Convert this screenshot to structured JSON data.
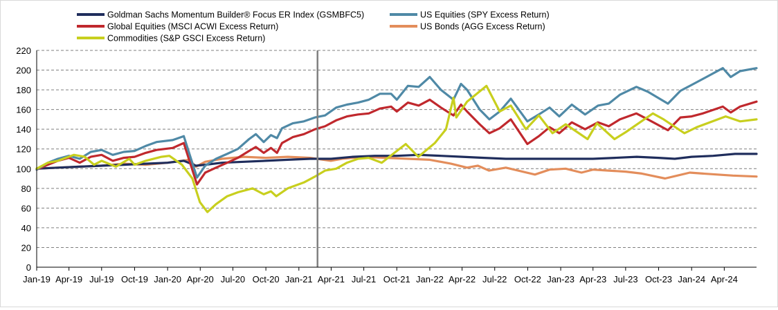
{
  "chart_data": {
    "type": "line",
    "title": "",
    "xlabel": "",
    "ylabel": "",
    "ylim": [
      0,
      220
    ],
    "y_ticks": [
      0,
      20,
      40,
      60,
      80,
      100,
      120,
      140,
      160,
      180,
      200,
      220
    ],
    "x_range": [
      "2019-01-01",
      "2024-06-30"
    ],
    "x_tick_dates": [
      "2019-01-01",
      "2019-04-01",
      "2019-07-01",
      "2019-10-01",
      "2020-01-01",
      "2020-04-01",
      "2020-07-01",
      "2020-10-01",
      "2021-01-01",
      "2021-04-01",
      "2021-07-01",
      "2021-10-01",
      "2022-01-01",
      "2022-04-01",
      "2022-07-01",
      "2022-10-01",
      "2023-01-01",
      "2023-04-01",
      "2023-07-01",
      "2023-10-01",
      "2024-01-01",
      "2024-04-01"
    ],
    "x_tick_labels": [
      "Jan-19",
      "Apr-19",
      "Jul-19",
      "Oct-19",
      "Jan-20",
      "Apr-20",
      "Jul-20",
      "Oct-20",
      "Jan-21",
      "Apr-21",
      "Jul-21",
      "Oct-21",
      "Jan-22",
      "Apr-22",
      "Jul-22",
      "Oct-22",
      "Jan-23",
      "Apr-23",
      "Jul-23",
      "Oct-23",
      "Jan-24",
      "Apr-24"
    ],
    "y_grid": true,
    "legend_position": "top",
    "reference_line": {
      "x": "2021-02-22",
      "color": "#808080"
    },
    "series": [
      {
        "name": "Goldman Sachs Momentum Builder® Focus ER Index (GSMBFC5)",
        "color": "#1f2d5c",
        "points": [
          [
            "2019-01-01",
            100
          ],
          [
            "2019-03-01",
            101
          ],
          [
            "2019-05-01",
            102
          ],
          [
            "2019-07-01",
            103
          ],
          [
            "2019-09-01",
            104
          ],
          [
            "2019-11-01",
            105
          ],
          [
            "2020-01-01",
            106
          ],
          [
            "2020-02-15",
            108
          ],
          [
            "2020-03-20",
            103
          ],
          [
            "2020-04-15",
            104
          ],
          [
            "2020-06-01",
            106
          ],
          [
            "2020-08-01",
            107
          ],
          [
            "2020-10-01",
            108
          ],
          [
            "2020-12-01",
            109
          ],
          [
            "2021-02-01",
            110
          ],
          [
            "2021-04-01",
            110
          ],
          [
            "2021-06-01",
            112
          ],
          [
            "2021-08-01",
            113
          ],
          [
            "2021-10-01",
            113
          ],
          [
            "2021-12-01",
            114
          ],
          [
            "2022-02-01",
            113
          ],
          [
            "2022-04-01",
            112
          ],
          [
            "2022-06-01",
            111
          ],
          [
            "2022-08-01",
            110
          ],
          [
            "2022-10-01",
            110
          ],
          [
            "2022-12-01",
            110
          ],
          [
            "2023-02-01",
            110
          ],
          [
            "2023-04-01",
            110
          ],
          [
            "2023-06-01",
            111
          ],
          [
            "2023-08-01",
            112
          ],
          [
            "2023-10-01",
            111
          ],
          [
            "2023-11-15",
            110
          ],
          [
            "2024-01-01",
            112
          ],
          [
            "2024-03-01",
            113
          ],
          [
            "2024-05-01",
            115
          ],
          [
            "2024-06-30",
            115
          ]
        ]
      },
      {
        "name": "US Equities (SPY Excess Return)",
        "color": "#4f89a6",
        "points": [
          [
            "2019-01-01",
            99
          ],
          [
            "2019-02-01",
            106
          ],
          [
            "2019-03-01",
            110
          ],
          [
            "2019-04-01",
            113
          ],
          [
            "2019-05-01",
            110
          ],
          [
            "2019-06-01",
            117
          ],
          [
            "2019-07-01",
            119
          ],
          [
            "2019-08-01",
            114
          ],
          [
            "2019-09-01",
            117
          ],
          [
            "2019-10-01",
            118
          ],
          [
            "2019-11-01",
            123
          ],
          [
            "2019-12-01",
            127
          ],
          [
            "2020-01-15",
            129
          ],
          [
            "2020-02-15",
            133
          ],
          [
            "2020-03-23",
            91
          ],
          [
            "2020-04-15",
            103
          ],
          [
            "2020-05-15",
            110
          ],
          [
            "2020-06-15",
            115
          ],
          [
            "2020-07-15",
            120
          ],
          [
            "2020-08-15",
            130
          ],
          [
            "2020-09-03",
            135
          ],
          [
            "2020-09-25",
            127
          ],
          [
            "2020-10-15",
            134
          ],
          [
            "2020-11-01",
            131
          ],
          [
            "2020-11-15",
            141
          ],
          [
            "2020-12-15",
            146
          ],
          [
            "2021-01-15",
            148
          ],
          [
            "2021-02-15",
            152
          ],
          [
            "2021-03-15",
            154
          ],
          [
            "2021-04-15",
            162
          ],
          [
            "2021-05-15",
            165
          ],
          [
            "2021-06-15",
            167
          ],
          [
            "2021-07-15",
            170
          ],
          [
            "2021-08-15",
            176
          ],
          [
            "2021-09-15",
            176
          ],
          [
            "2021-10-01",
            170
          ],
          [
            "2021-11-01",
            184
          ],
          [
            "2021-12-01",
            183
          ],
          [
            "2022-01-01",
            193
          ],
          [
            "2022-02-01",
            180
          ],
          [
            "2022-03-08",
            170
          ],
          [
            "2022-03-29",
            186
          ],
          [
            "2022-04-15",
            180
          ],
          [
            "2022-05-20",
            160
          ],
          [
            "2022-06-16",
            150
          ],
          [
            "2022-07-15",
            158
          ],
          [
            "2022-08-15",
            171
          ],
          [
            "2022-09-30",
            148
          ],
          [
            "2022-11-01",
            155
          ],
          [
            "2022-12-01",
            162
          ],
          [
            "2022-12-28",
            153
          ],
          [
            "2023-02-01",
            165
          ],
          [
            "2023-03-10",
            155
          ],
          [
            "2023-04-15",
            164
          ],
          [
            "2023-05-15",
            166
          ],
          [
            "2023-06-15",
            175
          ],
          [
            "2023-07-31",
            183
          ],
          [
            "2023-09-01",
            178
          ],
          [
            "2023-10-27",
            166
          ],
          [
            "2023-12-01",
            179
          ],
          [
            "2024-01-01",
            185
          ],
          [
            "2024-02-01",
            191
          ],
          [
            "2024-03-28",
            202
          ],
          [
            "2024-04-19",
            193
          ],
          [
            "2024-05-15",
            199
          ],
          [
            "2024-06-30",
            202
          ]
        ]
      },
      {
        "name": "Global Equities (MSCI ACWI Excess Return)",
        "color": "#c0282d",
        "points": [
          [
            "2019-01-01",
            99
          ],
          [
            "2019-02-01",
            104
          ],
          [
            "2019-03-01",
            108
          ],
          [
            "2019-04-01",
            111
          ],
          [
            "2019-05-01",
            106
          ],
          [
            "2019-06-01",
            112
          ],
          [
            "2019-07-01",
            114
          ],
          [
            "2019-08-01",
            108
          ],
          [
            "2019-09-01",
            111
          ],
          [
            "2019-10-01",
            112
          ],
          [
            "2019-11-01",
            116
          ],
          [
            "2019-12-01",
            119
          ],
          [
            "2020-01-15",
            121
          ],
          [
            "2020-02-15",
            126
          ],
          [
            "2020-03-23",
            84
          ],
          [
            "2020-04-15",
            96
          ],
          [
            "2020-05-15",
            101
          ],
          [
            "2020-06-15",
            106
          ],
          [
            "2020-07-15",
            111
          ],
          [
            "2020-08-15",
            118
          ],
          [
            "2020-09-03",
            122
          ],
          [
            "2020-09-25",
            116
          ],
          [
            "2020-10-15",
            121
          ],
          [
            "2020-11-01",
            116
          ],
          [
            "2020-11-15",
            126
          ],
          [
            "2020-12-15",
            132
          ],
          [
            "2021-01-15",
            135
          ],
          [
            "2021-02-15",
            140
          ],
          [
            "2021-03-15",
            143
          ],
          [
            "2021-04-15",
            149
          ],
          [
            "2021-05-15",
            153
          ],
          [
            "2021-06-15",
            155
          ],
          [
            "2021-07-15",
            156
          ],
          [
            "2021-08-15",
            161
          ],
          [
            "2021-09-15",
            163
          ],
          [
            "2021-10-01",
            158
          ],
          [
            "2021-11-01",
            167
          ],
          [
            "2021-12-01",
            164
          ],
          [
            "2022-01-01",
            170
          ],
          [
            "2022-02-01",
            162
          ],
          [
            "2022-03-08",
            154
          ],
          [
            "2022-03-29",
            165
          ],
          [
            "2022-04-15",
            158
          ],
          [
            "2022-05-20",
            145
          ],
          [
            "2022-06-16",
            136
          ],
          [
            "2022-07-15",
            141
          ],
          [
            "2022-08-15",
            150
          ],
          [
            "2022-09-30",
            125
          ],
          [
            "2022-11-01",
            133
          ],
          [
            "2022-12-01",
            142
          ],
          [
            "2022-12-28",
            136
          ],
          [
            "2023-02-01",
            147
          ],
          [
            "2023-03-10",
            140
          ],
          [
            "2023-04-15",
            147
          ],
          [
            "2023-05-15",
            143
          ],
          [
            "2023-06-15",
            150
          ],
          [
            "2023-07-31",
            156
          ],
          [
            "2023-09-01",
            150
          ],
          [
            "2023-10-27",
            139
          ],
          [
            "2023-12-01",
            152
          ],
          [
            "2024-01-01",
            153
          ],
          [
            "2024-02-01",
            156
          ],
          [
            "2024-03-28",
            163
          ],
          [
            "2024-04-19",
            157
          ],
          [
            "2024-05-15",
            163
          ],
          [
            "2024-06-30",
            168
          ]
        ]
      },
      {
        "name": "US Bonds (AGG Excess Return)",
        "color": "#e38d5b",
        "points": [
          [
            "2019-01-01",
            100
          ],
          [
            "2019-03-01",
            101
          ],
          [
            "2019-05-01",
            102
          ],
          [
            "2019-07-01",
            103
          ],
          [
            "2019-09-01",
            105
          ],
          [
            "2019-11-01",
            104
          ],
          [
            "2020-01-01",
            106
          ],
          [
            "2020-03-01",
            109
          ],
          [
            "2020-03-20",
            102
          ],
          [
            "2020-04-15",
            107
          ],
          [
            "2020-06-01",
            110
          ],
          [
            "2020-08-01",
            112
          ],
          [
            "2020-10-01",
            111
          ],
          [
            "2020-12-01",
            112
          ],
          [
            "2021-02-01",
            111
          ],
          [
            "2021-03-31",
            108
          ],
          [
            "2021-05-01",
            110
          ],
          [
            "2021-07-01",
            112
          ],
          [
            "2021-09-01",
            111
          ],
          [
            "2021-11-01",
            110
          ],
          [
            "2022-01-01",
            109
          ],
          [
            "2022-03-01",
            105
          ],
          [
            "2022-04-15",
            101
          ],
          [
            "2022-05-15",
            103
          ],
          [
            "2022-06-15",
            98
          ],
          [
            "2022-08-01",
            101
          ],
          [
            "2022-10-21",
            94
          ],
          [
            "2022-12-01",
            99
          ],
          [
            "2023-01-15",
            100
          ],
          [
            "2023-02-28",
            96
          ],
          [
            "2023-04-01",
            99
          ],
          [
            "2023-05-15",
            98
          ],
          [
            "2023-07-01",
            97
          ],
          [
            "2023-08-15",
            95
          ],
          [
            "2023-10-19",
            90
          ],
          [
            "2023-12-27",
            96
          ],
          [
            "2024-02-01",
            95
          ],
          [
            "2024-04-25",
            93
          ],
          [
            "2024-06-30",
            92
          ]
        ]
      },
      {
        "name": "Commodities (S&P GSCI Excess Return)",
        "color": "#c8cf1e",
        "points": [
          [
            "2019-01-01",
            100
          ],
          [
            "2019-02-01",
            106
          ],
          [
            "2019-03-01",
            108
          ],
          [
            "2019-04-15",
            114
          ],
          [
            "2019-05-15",
            112
          ],
          [
            "2019-06-10",
            104
          ],
          [
            "2019-07-01",
            108
          ],
          [
            "2019-08-10",
            102
          ],
          [
            "2019-09-16",
            110
          ],
          [
            "2019-10-01",
            104
          ],
          [
            "2019-11-01",
            108
          ],
          [
            "2019-12-15",
            112
          ],
          [
            "2020-01-06",
            113
          ],
          [
            "2020-02-10",
            104
          ],
          [
            "2020-03-10",
            90
          ],
          [
            "2020-03-31",
            66
          ],
          [
            "2020-04-21",
            56
          ],
          [
            "2020-05-15",
            64
          ],
          [
            "2020-06-15",
            72
          ],
          [
            "2020-07-15",
            76
          ],
          [
            "2020-08-25",
            80
          ],
          [
            "2020-09-25",
            74
          ],
          [
            "2020-10-15",
            77
          ],
          [
            "2020-10-30",
            72
          ],
          [
            "2020-12-01",
            80
          ],
          [
            "2021-01-15",
            86
          ],
          [
            "2021-02-15",
            92
          ],
          [
            "2021-03-15",
            98
          ],
          [
            "2021-04-15",
            100
          ],
          [
            "2021-05-15",
            106
          ],
          [
            "2021-06-15",
            110
          ],
          [
            "2021-07-15",
            111
          ],
          [
            "2021-08-20",
            106
          ],
          [
            "2021-10-01",
            118
          ],
          [
            "2021-10-26",
            125
          ],
          [
            "2021-11-30",
            112
          ],
          [
            "2022-01-15",
            126
          ],
          [
            "2022-02-15",
            140
          ],
          [
            "2022-03-08",
            172
          ],
          [
            "2022-03-16",
            152
          ],
          [
            "2022-04-15",
            168
          ],
          [
            "2022-06-08",
            184
          ],
          [
            "2022-07-15",
            158
          ],
          [
            "2022-08-15",
            164
          ],
          [
            "2022-09-26",
            140
          ],
          [
            "2022-11-01",
            154
          ],
          [
            "2022-12-09",
            136
          ],
          [
            "2023-01-15",
            145
          ],
          [
            "2023-03-17",
            130
          ],
          [
            "2023-04-12",
            146
          ],
          [
            "2023-05-31",
            130
          ],
          [
            "2023-07-01",
            137
          ],
          [
            "2023-09-15",
            156
          ],
          [
            "2023-10-15",
            150
          ],
          [
            "2023-12-12",
            136
          ],
          [
            "2024-01-15",
            142
          ],
          [
            "2024-04-05",
            153
          ],
          [
            "2024-05-15",
            148
          ],
          [
            "2024-06-30",
            150
          ]
        ]
      }
    ]
  }
}
